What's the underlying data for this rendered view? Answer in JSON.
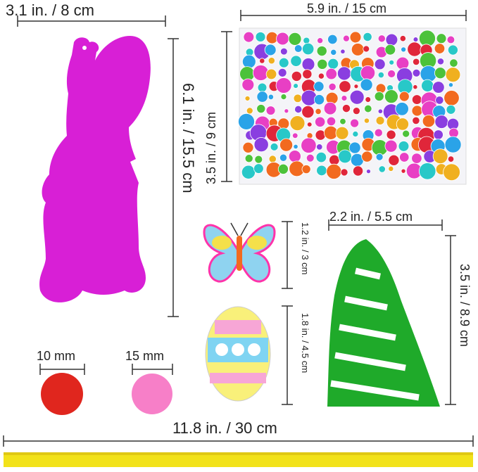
{
  "measurements": {
    "bunny_width": "3.1 in. / 8 cm",
    "bunny_height": "6.1 in. / 15.5 cm",
    "gem_sheet_width": "5.9 in. / 15 cm",
    "gem_sheet_height": "3.5 in. / 9 cm",
    "butterfly_height": "1.2 in. / 3 cm",
    "egg_height": "1.8 in. / 4.5 cm",
    "hat_width": "2.2 in. / 5.5 cm",
    "hat_height": "3.5 in. / 8.9 cm",
    "pompom_small": "10 mm",
    "pompom_large": "15 mm",
    "ribbon_length": "11.8 in. / 30 cm"
  },
  "colors": {
    "bunny": "#d81fd6",
    "hat_green": "#1faa2a",
    "ribbon_yellow": "#f2e21a",
    "pompom_red": "#e0261e",
    "pompom_pink": "#f77fc8"
  }
}
